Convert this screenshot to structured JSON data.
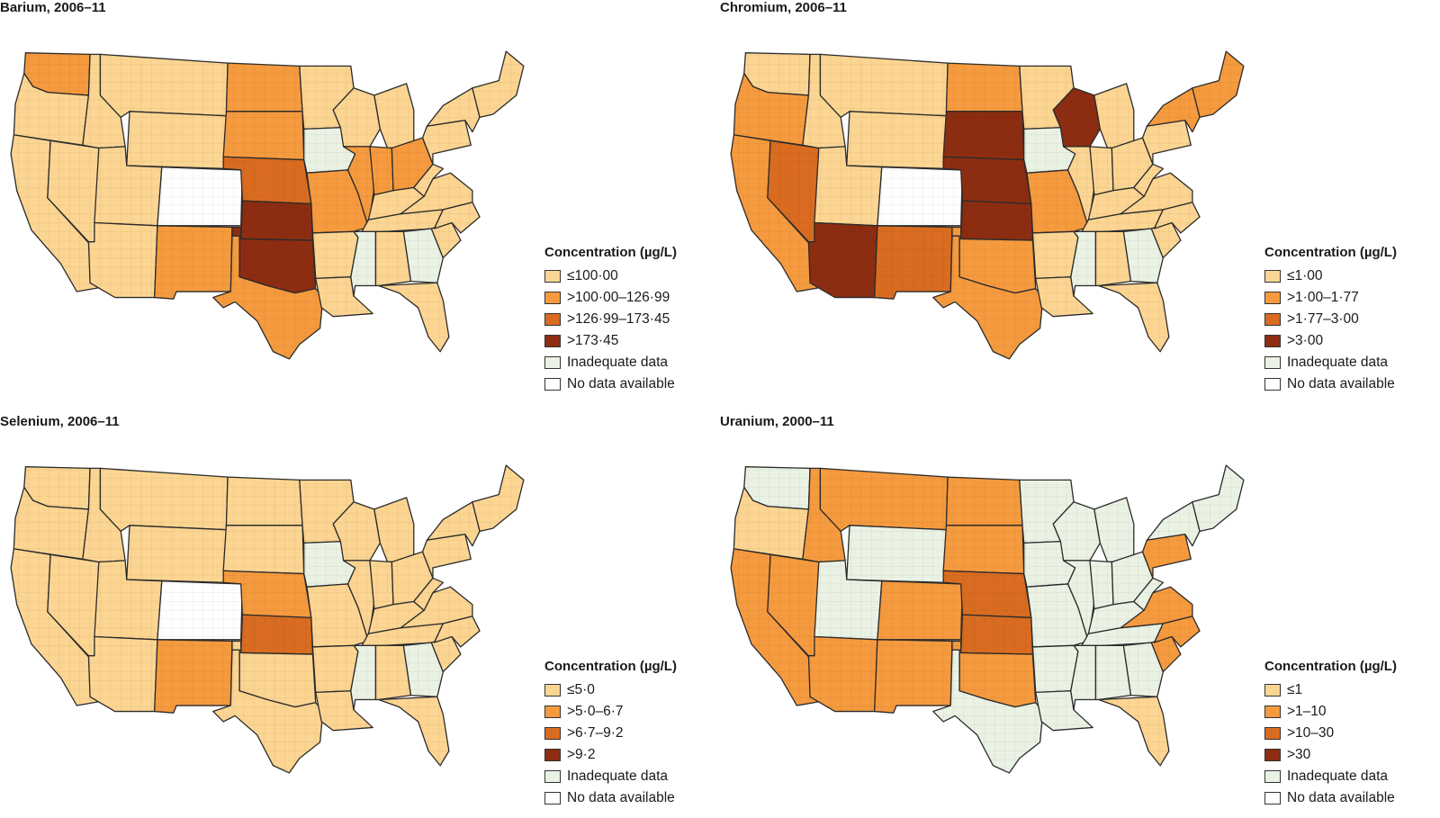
{
  "panels": [
    {
      "title": "Barium, 2006–11",
      "legend_title": "Concentration (µg/L)",
      "legend": [
        "≤100·00",
        ">100·00–126·99",
        ">126·99–173·45",
        ">173·45",
        "Inadequate data",
        "No data available"
      ],
      "fill_classes": {
        "WA": 2,
        "OR": 1,
        "CA": 1,
        "ID": 1,
        "NV": 1,
        "MT": 1,
        "WY": 1,
        "UT": 1,
        "AZ": 1,
        "CO": 6,
        "NM": 2,
        "ND": 2,
        "SD": 2,
        "NE": 3,
        "KS": 4,
        "OK": 4,
        "TX": 2,
        "MN": 1,
        "IA": 5,
        "MO": 2,
        "AR": 1,
        "LA": 1,
        "WI": 1,
        "IL": 2,
        "MI": 1,
        "IN": 2,
        "OH": 2,
        "KY": 1,
        "TN": 1,
        "MS": 5,
        "AL": 1,
        "GA": 5,
        "FL": 1,
        "SC": 1,
        "NC": 1,
        "VA": 1,
        "WV": 1,
        "PA": 1,
        "NY": 1,
        "NE_US": 1
      }
    },
    {
      "title": "Chromium, 2006–11",
      "legend_title": "Concentration (µg/L)",
      "legend": [
        "≤1·00",
        ">1·00–1·77",
        ">1·77–3·00",
        ">3·00",
        "Inadequate data",
        "No data available"
      ],
      "fill_classes": {
        "WA": 1,
        "OR": 2,
        "CA": 2,
        "ID": 1,
        "NV": 3,
        "MT": 1,
        "WY": 1,
        "UT": 1,
        "AZ": 4,
        "CO": 6,
        "NM": 3,
        "ND": 2,
        "SD": 4,
        "NE": 4,
        "KS": 4,
        "OK": 2,
        "TX": 2,
        "MN": 1,
        "IA": 5,
        "MO": 2,
        "AR": 1,
        "LA": 1,
        "WI": 4,
        "IL": 1,
        "MI": 1,
        "IN": 1,
        "OH": 1,
        "KY": 1,
        "TN": 1,
        "MS": 5,
        "AL": 1,
        "GA": 5,
        "FL": 1,
        "SC": 1,
        "NC": 1,
        "VA": 1,
        "WV": 1,
        "PA": 1,
        "NY": 2,
        "NE_US": 2
      }
    },
    {
      "title": "Selenium, 2006–11",
      "legend_title": "Concentration (µg/L)",
      "legend": [
        "≤5·0",
        ">5·0–6·7",
        ">6·7–9·2",
        ">9·2",
        "Inadequate data",
        "No data available"
      ],
      "fill_classes": {
        "WA": 1,
        "OR": 1,
        "CA": 1,
        "ID": 1,
        "NV": 1,
        "MT": 1,
        "WY": 1,
        "UT": 1,
        "AZ": 1,
        "CO": 6,
        "NM": 2,
        "ND": 1,
        "SD": 1,
        "NE": 2,
        "KS": 3,
        "OK": 1,
        "TX": 1,
        "MN": 1,
        "IA": 5,
        "MO": 1,
        "AR": 1,
        "LA": 1,
        "WI": 1,
        "IL": 1,
        "MI": 1,
        "IN": 1,
        "OH": 1,
        "KY": 1,
        "TN": 1,
        "MS": 5,
        "AL": 1,
        "GA": 5,
        "FL": 1,
        "SC": 1,
        "NC": 1,
        "VA": 1,
        "WV": 1,
        "PA": 1,
        "NY": 1,
        "NE_US": 1
      }
    },
    {
      "title": "Uranium, 2000–11",
      "legend_title": "Concentration (µg/L)",
      "legend": [
        "≤1",
        ">1–10",
        ">10–30",
        ">30",
        "Inadequate data",
        "No data available"
      ],
      "fill_classes": {
        "WA": 5,
        "OR": 1,
        "CA": 2,
        "ID": 2,
        "NV": 2,
        "MT": 2,
        "WY": 5,
        "UT": 5,
        "AZ": 2,
        "CO": 2,
        "NM": 2,
        "ND": 2,
        "SD": 2,
        "NE": 3,
        "KS": 3,
        "OK": 2,
        "TX": 5,
        "MN": 5,
        "IA": 5,
        "MO": 5,
        "AR": 5,
        "LA": 5,
        "WI": 5,
        "IL": 5,
        "MI": 5,
        "IN": 5,
        "OH": 5,
        "KY": 5,
        "TN": 5,
        "MS": 5,
        "AL": 5,
        "GA": 5,
        "FL": 1,
        "SC": 2,
        "NC": 2,
        "VA": 2,
        "WV": 5,
        "PA": 2,
        "NY": 5,
        "NE_US": 5
      }
    }
  ],
  "colors": [
    "#fcd592",
    "#f59a3e",
    "#d96c20",
    "#8c2d12",
    "#eaf2e4",
    "#ffffff"
  ],
  "line_color": "#2b2b2b"
}
